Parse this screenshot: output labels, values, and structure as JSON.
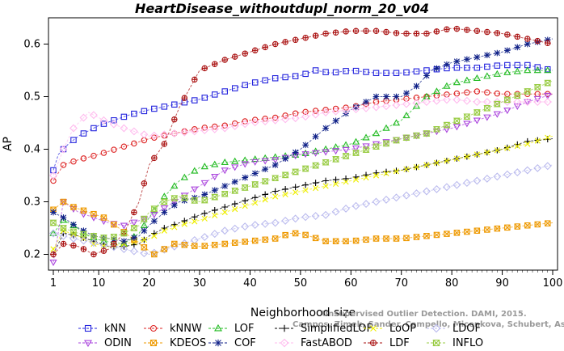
{
  "chart_data": {
    "type": "line",
    "title": "HeartDisease_withoutdupl_norm_20_v04",
    "xlabel": "Neighborhood size",
    "ylabel": "AP",
    "xlim": [
      1,
      100
    ],
    "ylim": [
      0.17,
      0.65
    ],
    "xticks": [
      "1",
      "10",
      "20",
      "30",
      "40",
      "50",
      "60",
      "70",
      "80",
      "90",
      "100"
    ],
    "yticks": [
      "0.2",
      "0.3",
      "0.4",
      "0.5",
      "0.6"
    ],
    "grid": false,
    "legend_position": "bottom",
    "credit_line1": "Unsupervised Outlier Detection. DAMI, 2015.",
    "credit_line2": "Campos, Zimek, Sander, Campello, Micenkova, Schubert, Assent, Houle",
    "series": [
      {
        "name": "kNN",
        "color": "#2222dd",
        "marker": "square",
        "x": [
          1,
          2,
          4,
          6,
          8,
          10,
          13,
          16,
          20,
          25,
          30,
          35,
          40,
          45,
          50,
          53,
          56,
          60,
          65,
          70,
          75,
          80,
          85,
          90,
          95,
          100
        ],
        "values": [
          0.36,
          0.39,
          0.41,
          0.425,
          0.435,
          0.445,
          0.455,
          0.465,
          0.475,
          0.485,
          0.495,
          0.51,
          0.525,
          0.535,
          0.54,
          0.55,
          0.545,
          0.55,
          0.545,
          0.545,
          0.55,
          0.555,
          0.555,
          0.56,
          0.56,
          0.55
        ]
      },
      {
        "name": "kNNW",
        "color": "#dd2222",
        "marker": "circle",
        "x": [
          1,
          3,
          6,
          10,
          15,
          20,
          25,
          30,
          35,
          40,
          45,
          50,
          55,
          60,
          65,
          70,
          75,
          80,
          85,
          90,
          95,
          100
        ],
        "values": [
          0.34,
          0.37,
          0.38,
          0.39,
          0.405,
          0.42,
          0.43,
          0.44,
          0.445,
          0.455,
          0.46,
          0.47,
          0.475,
          0.48,
          0.49,
          0.495,
          0.5,
          0.505,
          0.51,
          0.505,
          0.505,
          0.505
        ]
      },
      {
        "name": "LOF",
        "color": "#22bb22",
        "marker": "triangle",
        "x": [
          1,
          3,
          5,
          8,
          11,
          15,
          18,
          20,
          23,
          26,
          30,
          35,
          40,
          45,
          50,
          55,
          60,
          65,
          70,
          75,
          80,
          85,
          90,
          95,
          100
        ],
        "values": [
          0.24,
          0.265,
          0.255,
          0.235,
          0.225,
          0.22,
          0.24,
          0.27,
          0.31,
          0.34,
          0.365,
          0.375,
          0.38,
          0.385,
          0.39,
          0.4,
          0.41,
          0.43,
          0.455,
          0.5,
          0.525,
          0.535,
          0.545,
          0.55,
          0.55
        ]
      },
      {
        "name": "SimplifiedLOF",
        "color": "#000000",
        "marker": "plus",
        "x": [
          1,
          3,
          6,
          9,
          12,
          15,
          18,
          20,
          23,
          26,
          30,
          35,
          40,
          45,
          50,
          55,
          60,
          65,
          70,
          75,
          80,
          85,
          90,
          95,
          100
        ],
        "values": [
          0.2,
          0.24,
          0.235,
          0.225,
          0.215,
          0.215,
          0.22,
          0.235,
          0.25,
          0.26,
          0.275,
          0.29,
          0.305,
          0.32,
          0.33,
          0.34,
          0.345,
          0.355,
          0.36,
          0.37,
          0.38,
          0.39,
          0.4,
          0.415,
          0.42
        ]
      },
      {
        "name": "LoOP",
        "color": "#eeee00",
        "marker": "x",
        "x": [
          1,
          3,
          6,
          9,
          12,
          15,
          18,
          20,
          23,
          26,
          30,
          35,
          40,
          45,
          50,
          55,
          60,
          65,
          70,
          75,
          80,
          85,
          90,
          95,
          100
        ],
        "values": [
          0.21,
          0.245,
          0.235,
          0.22,
          0.215,
          0.22,
          0.225,
          0.23,
          0.245,
          0.255,
          0.265,
          0.28,
          0.295,
          0.31,
          0.32,
          0.33,
          0.34,
          0.35,
          0.36,
          0.37,
          0.38,
          0.39,
          0.4,
          0.41,
          0.425
        ]
      },
      {
        "name": "LDOF",
        "color": "#bbbbee",
        "marker": "diamond",
        "x": [
          1,
          5,
          10,
          15,
          20,
          25,
          30,
          35,
          40,
          45,
          50,
          55,
          60,
          65,
          70,
          75,
          80,
          85,
          90,
          95,
          100
        ],
        "values": [
          0.24,
          0.23,
          0.22,
          0.21,
          0.2,
          0.215,
          0.23,
          0.245,
          0.255,
          0.26,
          0.27,
          0.275,
          0.29,
          0.3,
          0.31,
          0.32,
          0.33,
          0.34,
          0.35,
          0.36,
          0.37
        ]
      },
      {
        "name": "ODIN",
        "color": "#aa44dd",
        "marker": "down-triangle",
        "x": [
          1,
          3,
          6,
          9,
          12,
          15,
          20,
          25,
          30,
          35,
          40,
          45,
          50,
          55,
          60,
          65,
          70,
          75,
          80,
          85,
          90,
          95,
          100
        ],
        "values": [
          0.185,
          0.3,
          0.28,
          0.27,
          0.26,
          0.255,
          0.27,
          0.3,
          0.33,
          0.36,
          0.375,
          0.38,
          0.39,
          0.395,
          0.4,
          0.41,
          0.42,
          0.43,
          0.44,
          0.455,
          0.47,
          0.49,
          0.505
        ]
      },
      {
        "name": "KDEOS",
        "color": "#ee9900",
        "marker": "boxed-square",
        "x": [
          1,
          3,
          5,
          8,
          11,
          14,
          18,
          21,
          25,
          30,
          35,
          40,
          45,
          48,
          50,
          55,
          60,
          65,
          70,
          75,
          80,
          85,
          90,
          95,
          100
        ],
        "values": [
          0.285,
          0.3,
          0.29,
          0.28,
          0.27,
          0.25,
          0.22,
          0.2,
          0.22,
          0.215,
          0.22,
          0.225,
          0.23,
          0.24,
          0.24,
          0.225,
          0.225,
          0.23,
          0.23,
          0.235,
          0.24,
          0.245,
          0.25,
          0.255,
          0.26
        ]
      },
      {
        "name": "COF",
        "color": "#112288",
        "marker": "asterisk",
        "x": [
          1,
          3,
          6,
          9,
          12,
          15,
          18,
          20,
          23,
          26,
          30,
          35,
          40,
          45,
          50,
          55,
          60,
          65,
          70,
          73,
          76,
          80,
          85,
          90,
          95,
          100
        ],
        "values": [
          0.28,
          0.27,
          0.25,
          0.235,
          0.23,
          0.225,
          0.235,
          0.255,
          0.28,
          0.3,
          0.31,
          0.33,
          0.35,
          0.37,
          0.4,
          0.44,
          0.475,
          0.5,
          0.5,
          0.52,
          0.55,
          0.565,
          0.575,
          0.585,
          0.6,
          0.61
        ]
      },
      {
        "name": "FastABOD",
        "color": "#ffbbee",
        "marker": "diamond",
        "x": [
          1,
          3,
          5,
          8,
          11,
          15,
          20,
          25,
          30,
          35,
          40,
          45,
          50,
          55,
          60,
          65,
          70,
          75,
          80,
          85,
          90,
          95,
          100
        ],
        "values": [
          0.35,
          0.4,
          0.44,
          0.47,
          0.455,
          0.44,
          0.425,
          0.43,
          0.435,
          0.44,
          0.45,
          0.455,
          0.46,
          0.47,
          0.475,
          0.48,
          0.485,
          0.49,
          0.495,
          0.49,
          0.49,
          0.49,
          0.49
        ]
      },
      {
        "name": "LDF",
        "color": "#aa1111",
        "marker": "circle-plus",
        "x": [
          1,
          3,
          6,
          9,
          12,
          15,
          18,
          20,
          23,
          26,
          30,
          35,
          40,
          45,
          50,
          55,
          60,
          65,
          70,
          75,
          80,
          85,
          90,
          95,
          100
        ],
        "values": [
          0.2,
          0.22,
          0.215,
          0.2,
          0.21,
          0.24,
          0.3,
          0.37,
          0.41,
          0.48,
          0.55,
          0.57,
          0.585,
          0.6,
          0.61,
          0.62,
          0.625,
          0.625,
          0.62,
          0.62,
          0.63,
          0.625,
          0.62,
          0.61,
          0.6
        ]
      },
      {
        "name": "INFLO",
        "color": "#99cc44",
        "marker": "hourglass",
        "x": [
          1,
          3,
          6,
          9,
          12,
          15,
          18,
          20,
          23,
          26,
          30,
          35,
          40,
          45,
          50,
          55,
          60,
          65,
          70,
          75,
          80,
          85,
          90,
          95,
          100
        ],
        "values": [
          0.26,
          0.25,
          0.24,
          0.235,
          0.23,
          0.24,
          0.255,
          0.28,
          0.3,
          0.31,
          0.3,
          0.315,
          0.33,
          0.345,
          0.36,
          0.375,
          0.39,
          0.405,
          0.42,
          0.43,
          0.45,
          0.47,
          0.49,
          0.51,
          0.53
        ]
      }
    ]
  }
}
